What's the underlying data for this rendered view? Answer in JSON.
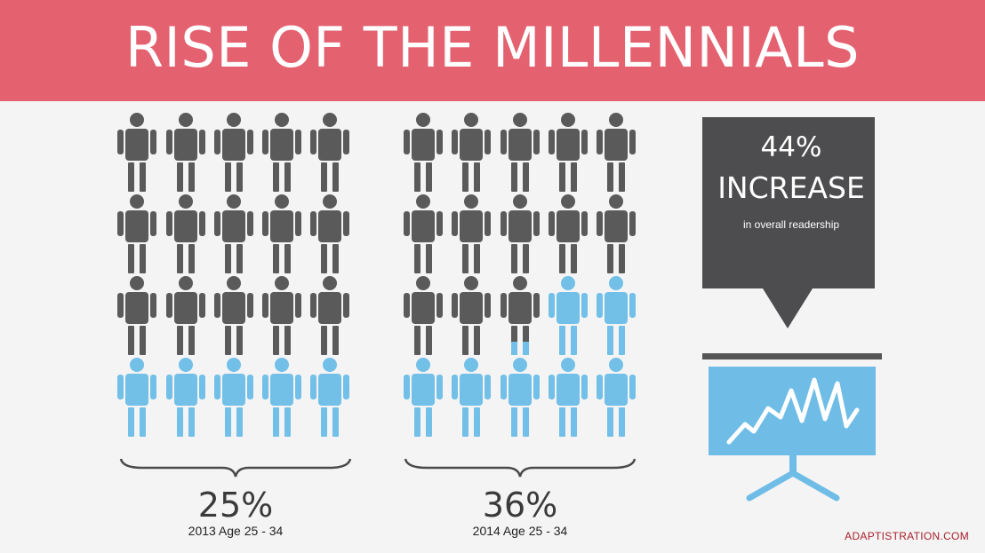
{
  "header": {
    "title": "RISE OF THE MILLENNIALS",
    "color": "#e46170"
  },
  "colors": {
    "person_gray": "#5a5a5a",
    "person_blue": "#72bfe8",
    "callout_bg": "#4d4d4f",
    "chart_screen": "#6fbde7",
    "credit": "#a8202b"
  },
  "groups": [
    {
      "percent_label": "25%",
      "caption": "2013 Age 25 - 34",
      "total_people": 20,
      "highlighted_fraction": 0.25
    },
    {
      "percent_label": "36%",
      "caption": "2014 Age 25 - 34",
      "total_people": 20,
      "highlighted_fraction": 0.36
    }
  ],
  "callout": {
    "percent": "44%",
    "headline": "INCREASE",
    "subtext": "in overall readership"
  },
  "chart_icon": "presentation-board-with-line-chart-icon",
  "person_icon": "person-icon",
  "credit": "ADAPTISTRATION.COM"
}
